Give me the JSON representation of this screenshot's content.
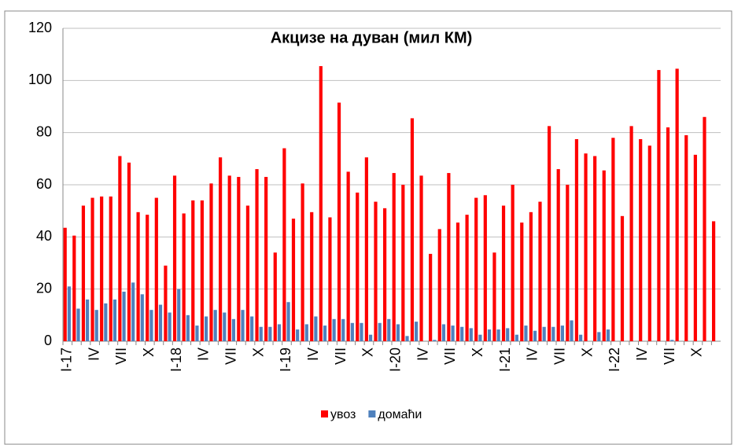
{
  "chart_data": {
    "type": "bar",
    "title": "Акцизе на дуван (мил КМ)",
    "categories": [
      "I-17",
      null,
      null,
      "IV",
      null,
      null,
      "VII",
      null,
      null,
      "X",
      null,
      null,
      "I-18",
      null,
      null,
      "IV",
      null,
      null,
      "VII",
      null,
      null,
      "X",
      null,
      null,
      "I-19",
      null,
      null,
      "IV",
      null,
      null,
      "VII",
      null,
      null,
      "X",
      null,
      null,
      "I-20",
      null,
      null,
      "IV",
      null,
      null,
      "VII",
      null,
      null,
      "X",
      null,
      null,
      "I-21",
      null,
      null,
      "IV",
      null,
      null,
      "VII",
      null,
      null,
      "X",
      null,
      null,
      "I-22",
      null,
      null,
      "IV",
      null,
      null,
      "VII",
      null,
      null,
      "X",
      null,
      null
    ],
    "series": [
      {
        "name": "увоз",
        "color": "#ff0000",
        "values": [
          43.5,
          40.5,
          52,
          55,
          55.5,
          55.5,
          71,
          68.5,
          49.5,
          48.5,
          55,
          29,
          63.5,
          49,
          54,
          54,
          60.5,
          70.5,
          63.5,
          63,
          52,
          66,
          63,
          34,
          74,
          47,
          60.5,
          49.5,
          105.5,
          47.5,
          91.5,
          65,
          57,
          70.5,
          53.5,
          51,
          64.5,
          60,
          85.5,
          63.5,
          33.5,
          43,
          64.5,
          45.5,
          48.5,
          55,
          56,
          34,
          52,
          60,
          45.5,
          49.5,
          53.5,
          82.5,
          66,
          60,
          77.5,
          72,
          71,
          65.5,
          78,
          48,
          82.5,
          77.5,
          75,
          104,
          82,
          104.5,
          79,
          71.5,
          86,
          46
        ]
      },
      {
        "name": "домаћи",
        "color": "#4f81bd",
        "values": [
          21,
          12.5,
          16,
          12,
          14.5,
          16,
          19,
          22.5,
          18,
          12,
          14,
          11,
          20,
          10,
          6,
          9.5,
          12,
          11,
          8.5,
          12,
          9.5,
          5.5,
          5.5,
          6.5,
          15,
          4.5,
          6.5,
          9.5,
          6,
          8.5,
          8.5,
          7,
          7,
          2.5,
          7,
          8.5,
          6.5,
          2,
          7.5,
          0,
          0.5,
          6.5,
          6,
          5.5,
          5,
          2.5,
          4.5,
          4.5,
          5,
          2.5,
          6,
          4,
          5.5,
          5.5,
          6,
          8,
          2.5,
          0,
          3.5,
          4.5,
          0,
          0,
          0,
          0,
          0,
          0,
          0.5,
          0,
          0,
          0,
          0,
          0
        ]
      }
    ],
    "ylim": [
      0,
      120
    ],
    "yticks": [
      0,
      20,
      40,
      60,
      80,
      100,
      120
    ],
    "grid": true
  }
}
